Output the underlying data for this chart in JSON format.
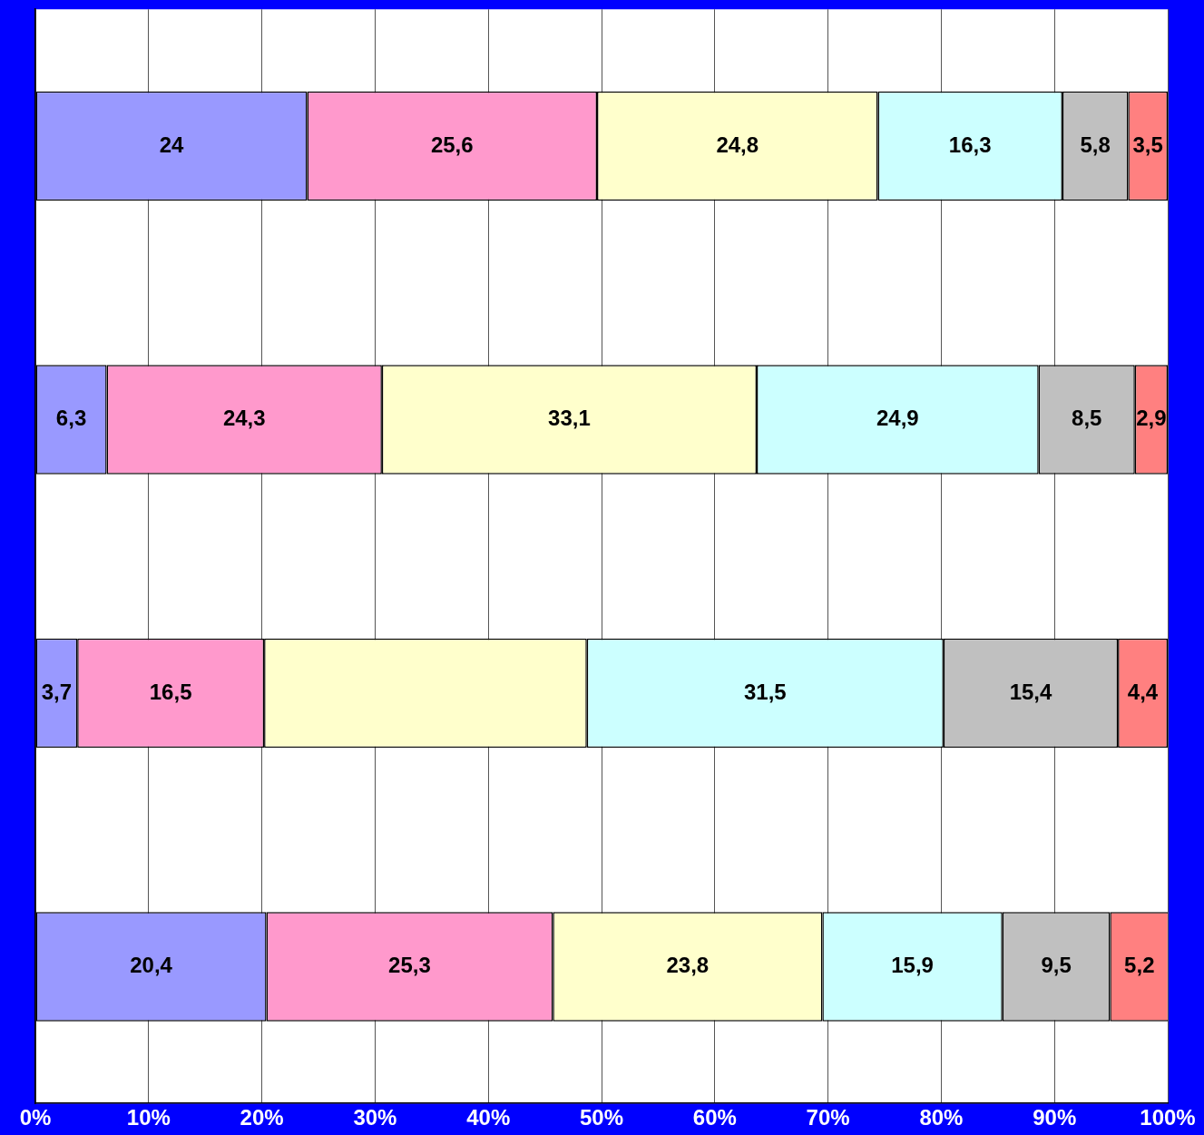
{
  "chart_data": {
    "type": "bar",
    "orientation": "horizontal",
    "stacked": true,
    "categories": [
      null,
      null,
      null,
      null
    ],
    "series": [
      {
        "color": "#9999ff",
        "values": [
          24,
          6.3,
          3.7,
          20.4
        ],
        "value_labels": [
          "24",
          "6,3",
          "3,7",
          "20,4"
        ]
      },
      {
        "color": "#ff99cc",
        "values": [
          25.6,
          24.3,
          16.5,
          25.3
        ],
        "value_labels": [
          "25,6",
          "24,3",
          "16,5",
          "25,3"
        ]
      },
      {
        "color": "#ffffcc",
        "values": [
          24.8,
          33.1,
          28.5,
          23.8
        ],
        "value_labels": [
          "24,8",
          "33,1",
          null,
          "23,8"
        ]
      },
      {
        "color": "#ccffff",
        "values": [
          16.3,
          24.9,
          31.5,
          15.9
        ],
        "value_labels": [
          "16,3",
          "24,9",
          "31,5",
          "15,9"
        ]
      },
      {
        "color": "#c0c0c0",
        "values": [
          5.8,
          8.5,
          15.4,
          9.5
        ],
        "value_labels": [
          "5,8",
          "8,5",
          "15,4",
          "9,5"
        ]
      },
      {
        "color": "#ff8080",
        "values": [
          3.5,
          2.9,
          4.4,
          5.2
        ],
        "value_labels": [
          "3,5",
          "2,9",
          "4,4",
          "5,2"
        ]
      }
    ],
    "xlim": [
      0,
      100
    ],
    "xticks": [
      {
        "value": 0,
        "label": "0%"
      },
      {
        "value": 10,
        "label": "10%"
      },
      {
        "value": 20,
        "label": "20%"
      },
      {
        "value": 30,
        "label": "30%"
      },
      {
        "value": 40,
        "label": "40%"
      },
      {
        "value": 50,
        "label": "50%"
      },
      {
        "value": 60,
        "label": "60%"
      },
      {
        "value": 70,
        "label": "70%"
      },
      {
        "value": 80,
        "label": "80%"
      },
      {
        "value": 90,
        "label": "90%"
      },
      {
        "value": 100,
        "label": "100%"
      }
    ],
    "grid": "x",
    "legend": false
  }
}
